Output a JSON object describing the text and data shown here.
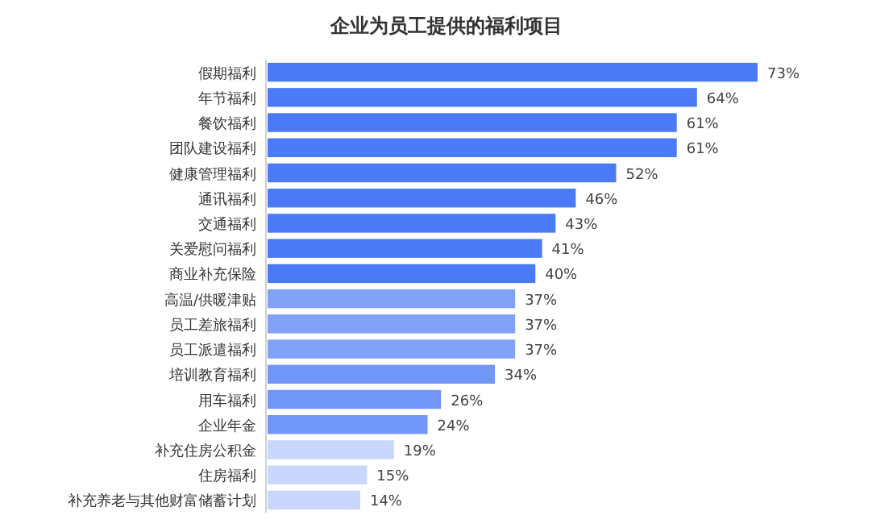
{
  "chart_data": {
    "type": "bar",
    "orientation": "horizontal",
    "title": "企业为员工提供的福利项目",
    "categories": [
      "假期福利",
      "年节福利",
      "餐饮福利",
      "团队建设福利",
      "健康管理福利",
      "通讯福利",
      "交通福利",
      "关爱慰问福利",
      "商业补充保险",
      "高温/供暖津贴",
      "员工差旅福利",
      "员工派遣福利",
      "培训教育福利",
      "用车福利",
      "企业年金",
      "补充住房公积金",
      "住房福利",
      "补充养老与其他财富储蓄计划"
    ],
    "values": [
      73,
      64,
      61,
      61,
      52,
      46,
      43,
      41,
      40,
      37,
      37,
      37,
      34,
      26,
      24,
      19,
      15,
      14
    ],
    "value_labels": [
      "73%",
      "64%",
      "61%",
      "61%",
      "52%",
      "46%",
      "43%",
      "41%",
      "40%",
      "37%",
      "37%",
      "37%",
      "34%",
      "26%",
      "24%",
      "19%",
      "15%",
      "14%"
    ],
    "colors": [
      "#4a7af6",
      "#4a7af6",
      "#4a7af6",
      "#4a7af6",
      "#4a7af6",
      "#4a7af6",
      "#4a7af6",
      "#4a7af6",
      "#4a7af6",
      "#82a2f8",
      "#82a2f8",
      "#82a2f8",
      "#7096f7",
      "#7096f7",
      "#7096f7",
      "#c9d7fc",
      "#c9d7fc",
      "#c9d7fc"
    ]
  }
}
